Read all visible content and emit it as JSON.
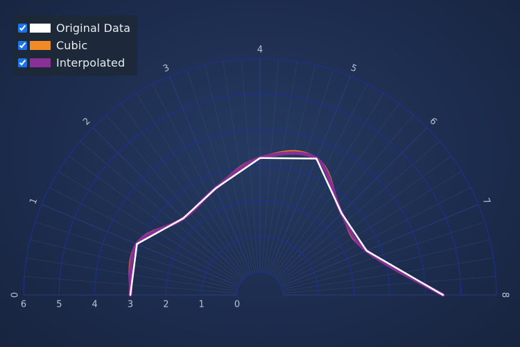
{
  "chart_data": {
    "type": "line",
    "polar": true,
    "angular_axis": {
      "range": [
        0,
        8
      ],
      "ticks": [
        "0",
        "1",
        "2",
        "3",
        "4",
        "5",
        "6",
        "7",
        "8"
      ]
    },
    "radial_axis": {
      "range": [
        0,
        6
      ],
      "ticks": [
        "0",
        "1",
        "2",
        "3",
        "4",
        "5",
        "6"
      ]
    },
    "legend_position": "top-left",
    "series": [
      {
        "name": "Original Data",
        "color": "#ffffff",
        "smooth": "none",
        "width": 2.5,
        "points": [
          [
            0,
            3
          ],
          [
            1,
            3.1
          ],
          [
            2,
            2.4
          ],
          [
            3,
            2.6
          ],
          [
            4,
            3.2
          ],
          [
            5,
            3.5
          ],
          [
            6,
            2.6
          ],
          [
            7,
            2.6
          ],
          [
            8,
            4.5
          ]
        ]
      },
      {
        "name": "Cubic",
        "color": "#f08a24",
        "smooth": "cubic",
        "width": 4,
        "points": [
          [
            0,
            3
          ],
          [
            1,
            3.1
          ],
          [
            2,
            2.4
          ],
          [
            3,
            2.6
          ],
          [
            4,
            3.2
          ],
          [
            5,
            3.5
          ],
          [
            6,
            2.6
          ],
          [
            7,
            2.6
          ],
          [
            8,
            4.5
          ]
        ]
      },
      {
        "name": "Interpolated",
        "color": "#8a2f96",
        "smooth": "spline",
        "width": 5,
        "points": [
          [
            0,
            3
          ],
          [
            1,
            3.1
          ],
          [
            2,
            2.4
          ],
          [
            3,
            2.6
          ],
          [
            4,
            3.2
          ],
          [
            5,
            3.5
          ],
          [
            6,
            2.6
          ],
          [
            7,
            2.6
          ],
          [
            8,
            4.5
          ]
        ]
      }
    ]
  }
}
